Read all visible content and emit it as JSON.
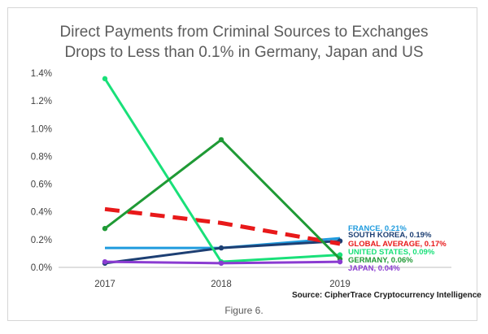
{
  "chart_data": {
    "type": "line",
    "title_lines": [
      "Direct Payments from Criminal Sources to Exchanges",
      "Drops to Less than 0.1% in Germany, Japan and US"
    ],
    "categories": [
      "2017",
      "2018",
      "2019"
    ],
    "y_ticks": [
      "0.0%",
      "0.2%",
      "0.4%",
      "0.6%",
      "0.8%",
      "1.0%",
      "1.2%",
      "1.4%"
    ],
    "ylim": [
      0,
      1.4
    ],
    "y_unit": "%",
    "grid": false,
    "series": [
      {
        "name": "FRANCE",
        "end_label": "FRANCE, 0.21%",
        "color": "#1f9bde",
        "values": [
          0.14,
          0.14,
          0.21
        ],
        "dashed": false,
        "markers": false
      },
      {
        "name": "SOUTH KOREA",
        "end_label": "SOUTH KOREA, 0.19%",
        "color": "#1d3f73",
        "values": [
          0.03,
          0.14,
          0.19
        ],
        "dashed": false,
        "markers": true
      },
      {
        "name": "GLOBAL AVERAGE",
        "end_label": "GLOBAL AVERAGE, 0.17%",
        "color": "#e8191a",
        "values": [
          0.42,
          0.32,
          0.17
        ],
        "dashed": true,
        "markers": false
      },
      {
        "name": "UNITED STATES",
        "end_label": "UNITED STATES, 0.09%",
        "color": "#19e079",
        "values": [
          1.36,
          0.04,
          0.09
        ],
        "dashed": false,
        "markers": true
      },
      {
        "name": "GERMANY",
        "end_label": "GERMANY, 0.06%",
        "color": "#1f9a35",
        "values": [
          0.28,
          0.92,
          0.06
        ],
        "dashed": false,
        "markers": true
      },
      {
        "name": "JAPAN",
        "end_label": "JAPAN, 0.04%",
        "color": "#8a3bd1",
        "values": [
          0.04,
          0.03,
          0.04
        ],
        "dashed": false,
        "markers": true
      }
    ],
    "source": "Source: CipherTrace Cryptocurrency Intelligence"
  },
  "caption": "Figure 6."
}
